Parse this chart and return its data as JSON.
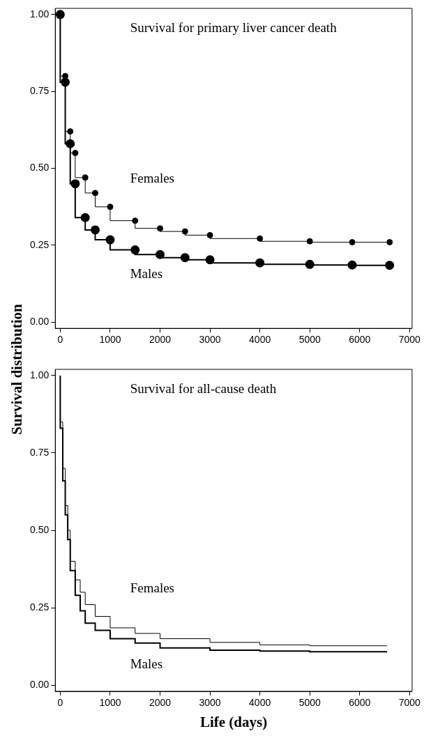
{
  "chart_data": [
    {
      "type": "step",
      "title": "Survival for primary liver cancer death",
      "ylabel": "Survival distribution",
      "xlim": [
        -100,
        7050
      ],
      "xticks": [
        0,
        1000,
        2000,
        3000,
        4000,
        5000,
        6000,
        7000
      ],
      "ylim": [
        -0.02,
        1.02
      ],
      "yticks": [
        {
          "value": 0,
          "label": "0.00"
        },
        {
          "value": 0.25,
          "label": "0.25"
        },
        {
          "value": 0.5,
          "label": "0.50"
        },
        {
          "value": 0.75,
          "label": "0.75"
        },
        {
          "value": 1,
          "label": "1.00"
        }
      ],
      "grid": false,
      "legend": false,
      "marker": "circle",
      "line_style": "solid",
      "x": [
        0,
        100,
        200,
        300,
        500,
        700,
        1000,
        1500,
        2000,
        2500,
        3000,
        4000,
        5000,
        5850,
        6600
      ],
      "series": [
        {
          "name": "Females",
          "color": "#000000",
          "values": [
            1.0,
            0.8,
            0.62,
            0.55,
            0.47,
            0.42,
            0.375,
            0.33,
            0.305,
            0.295,
            0.283,
            0.272,
            0.263,
            0.26,
            0.26
          ]
        },
        {
          "name": "Males",
          "color": "#000000",
          "values": [
            1.0,
            0.78,
            0.58,
            0.45,
            0.34,
            0.3,
            0.268,
            0.235,
            0.22,
            0.21,
            0.203,
            0.193,
            0.188,
            0.186,
            0.185
          ]
        }
      ]
    },
    {
      "type": "step",
      "title": "Survival for all-cause death",
      "xlabel": "Life (days)",
      "xlim": [
        -100,
        7050
      ],
      "xticks": [
        0,
        1000,
        2000,
        3000,
        4000,
        5000,
        6000,
        7000
      ],
      "ylim": [
        -0.02,
        1.02
      ],
      "yticks": [
        {
          "value": 0,
          "label": "0.00"
        },
        {
          "value": 0.25,
          "label": "0.25"
        },
        {
          "value": 0.5,
          "label": "0.50"
        },
        {
          "value": 0.75,
          "label": "0.75"
        },
        {
          "value": 1,
          "label": "1.00"
        }
      ],
      "grid": false,
      "legend": false,
      "line_style": "solid",
      "x": [
        0,
        50,
        100,
        150,
        200,
        300,
        400,
        500,
        700,
        1000,
        1500,
        2000,
        3000,
        4000,
        5000,
        5850,
        6550
      ],
      "series": [
        {
          "name": "Females",
          "color": "#000000",
          "values": [
            1.0,
            0.85,
            0.7,
            0.58,
            0.5,
            0.4,
            0.34,
            0.3,
            0.26,
            0.222,
            0.185,
            0.167,
            0.15,
            0.138,
            0.13,
            0.127,
            0.127
          ]
        },
        {
          "name": "Males",
          "color": "#000000",
          "values": [
            1.0,
            0.83,
            0.66,
            0.55,
            0.47,
            0.37,
            0.29,
            0.24,
            0.2,
            0.177,
            0.15,
            0.136,
            0.12,
            0.113,
            0.11,
            0.108,
            0.108
          ]
        }
      ]
    }
  ]
}
